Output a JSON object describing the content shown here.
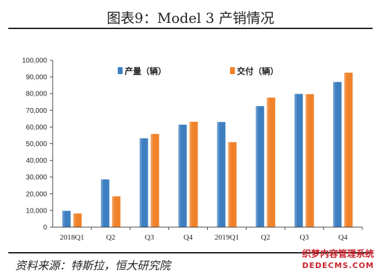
{
  "title": "图表9：Model 3 产销情况",
  "source": "资料来源：特斯拉，恒大研究院",
  "watermark": {
    "line1": "织梦内容管理系统",
    "line2": "DEDECMS.COM"
  },
  "colors": {
    "production": "#3d7fc1",
    "delivery": "#f0822a"
  },
  "chart_data": {
    "type": "bar",
    "categories": [
      "2018Q1",
      "Q2",
      "Q3",
      "Q4",
      "2019Q1",
      "Q2",
      "Q3",
      "Q4"
    ],
    "series": [
      {
        "name": "产量（辆）",
        "values": [
          9766,
          28578,
          53239,
          61394,
          62975,
          72531,
          79837,
          86958
        ]
      },
      {
        "name": "交付（辆）",
        "values": [
          8182,
          18449,
          55840,
          63150,
          50928,
          77634,
          79703,
          92550
        ]
      }
    ],
    "ylim": [
      0,
      100000
    ],
    "yticks": [
      "0",
      "10,000",
      "20,000",
      "30,000",
      "40,000",
      "50,000",
      "60,000",
      "70,000",
      "80,000",
      "90,000",
      "100,000"
    ],
    "xlabel": "",
    "ylabel": "",
    "legend": "top-left"
  }
}
